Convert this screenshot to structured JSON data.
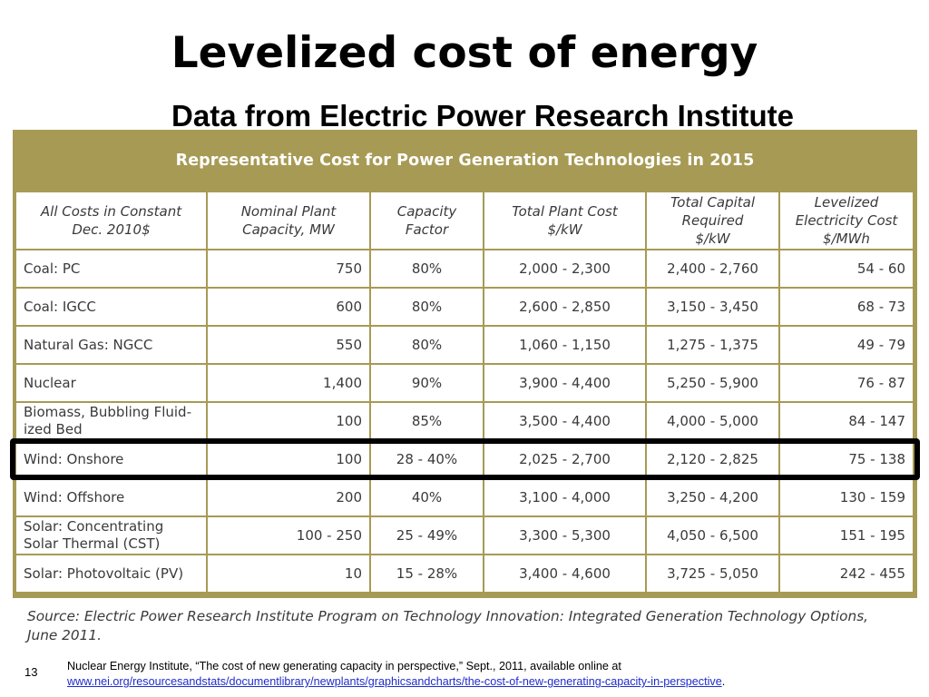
{
  "slide": {
    "title": "Levelized cost of energy",
    "subtitle": "Data from Electric Power Research Institute",
    "number": "13"
  },
  "table": {
    "caption": "Representative Cost for Power Generation Technologies in 2015",
    "headers": [
      [
        "All Costs in Constant",
        "Dec. 2010$"
      ],
      [
        "Nominal Plant",
        "Capacity, MW"
      ],
      [
        "Capacity",
        "Factor"
      ],
      [
        "Total Plant Cost",
        "$/kW"
      ],
      [
        "Total Capital",
        "Required",
        "$/kW"
      ],
      [
        "Levelized",
        "Electricity Cost",
        "$/MWh"
      ]
    ],
    "rows": [
      {
        "name": "Coal:  PC",
        "capacity": "750",
        "factor": "80%",
        "plant_cost": "2,000 - 2,300",
        "capital": "2,400 - 2,760",
        "lcoe": "54 - 60"
      },
      {
        "name": "Coal:  IGCC",
        "capacity": "600",
        "factor": "80%",
        "plant_cost": "2,600 - 2,850",
        "capital": "3,150 - 3,450",
        "lcoe": "68 - 73"
      },
      {
        "name": "Natural Gas:  NGCC",
        "capacity": "550",
        "factor": "80%",
        "plant_cost": "1,060 - 1,150",
        "capital": "1,275 - 1,375",
        "lcoe": "49 - 79"
      },
      {
        "name": "Nuclear",
        "capacity": "1,400",
        "factor": "90%",
        "plant_cost": "3,900 - 4,400",
        "capital": "5,250 - 5,900",
        "lcoe": "76 - 87"
      },
      {
        "name": "Biomass, Bubbling Fluid-ized Bed",
        "capacity": "100",
        "factor": "85%",
        "plant_cost": "3,500 - 4,400",
        "capital": "4,000 - 5,000",
        "lcoe": "84 - 147"
      },
      {
        "name": "Wind:  Onshore",
        "capacity": "100",
        "factor": "28 - 40%",
        "plant_cost": "2,025 - 2,700",
        "capital": "2,120 - 2,825",
        "lcoe": "75 - 138"
      },
      {
        "name": "Wind:  Offshore",
        "capacity": "200",
        "factor": "40%",
        "plant_cost": "3,100 - 4,000",
        "capital": "3,250 - 4,200",
        "lcoe": "130 - 159"
      },
      {
        "name": "Solar:  Concentrating Solar Thermal (CST)",
        "capacity": "100 - 250",
        "factor": "25 - 49%",
        "plant_cost": "3,300 - 5,300",
        "capital": "4,050 - 6,500",
        "lcoe": "151 - 195"
      },
      {
        "name": "Solar:  Photovoltaic (PV)",
        "capacity": "10",
        "factor": "15 - 28%",
        "plant_cost": "3,400 - 4,600",
        "capital": "3,725 - 5,050",
        "lcoe": "242 - 455"
      }
    ],
    "highlighted_row": "Wind:  Onshore",
    "source": "Source:  Electric Power Research Institute Program on Technology Innovation:  Integrated Generation Technology Options, June 2011."
  },
  "footnote": {
    "text": "Nuclear Energy Institute, “The cost of new generating capacity in perspective,” Sept., 2011, available online at",
    "link": "www.nei.org/resourcesandstats/documentlibrary/newplants/graphicsandcharts/the-cost-of-new-generating-capacity-in-perspective",
    "end": "."
  },
  "colors": {
    "panel": "#a79a54",
    "cell_text": "#3a3a3a",
    "link": "#1f2ccc",
    "highlight_border": "#000000"
  }
}
